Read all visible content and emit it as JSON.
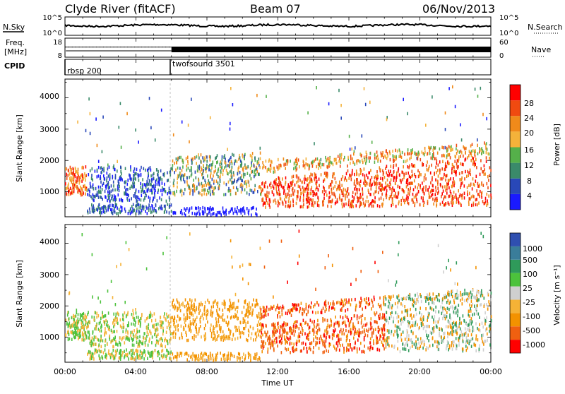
{
  "header": {
    "station": "Clyde River (fitACF)",
    "beam": "Beam 07",
    "date": "06/Nov/2013"
  },
  "side_labels": {
    "nsky": "N.Sky",
    "nsearch": "N.Search",
    "freq_line1": "Freq.",
    "freq_line2": "[MHz]",
    "nave": "Nave",
    "cpid": "CPID"
  },
  "cpid_segments": [
    {
      "label": "rbsp 200",
      "start_hour": 0
    },
    {
      "label": "twofsound 3501",
      "start_hour": 6
    }
  ],
  "colors": {
    "power_scale": [
      "#1a1aff",
      "#2948b8",
      "#3a8a6a",
      "#55b04a",
      "#f4b23a",
      "#f08a1a",
      "#f04a10",
      "#ff0000"
    ],
    "velocity_scale": [
      "#ff0000",
      "#f06010",
      "#f39200",
      "#f5b236",
      "#cfcfcf",
      "#4cc23c",
      "#2f9a5a",
      "#3a7d9a",
      "#2f4fb0"
    ]
  },
  "chart_data": [
    {
      "type": "line",
      "name": "noise",
      "left_ticks": [
        "10^5",
        "10^0"
      ],
      "right_ticks": [
        "10^5",
        "10^0"
      ],
      "xlim": [
        0,
        24
      ]
    },
    {
      "type": "line",
      "name": "frequency-nave",
      "left_ticks": [
        "18",
        "8"
      ],
      "right_ticks": [
        "60",
        "0"
      ],
      "xlim": [
        0,
        24
      ]
    },
    {
      "type": "heatmap",
      "name": "power",
      "ylabel": "Slant Range [km]",
      "yticks": [
        "4000",
        "3000",
        "2000",
        "1000"
      ],
      "ylim": [
        200,
        4600
      ],
      "xlim": [
        0,
        24
      ],
      "colorbar_label": "Power [dB]",
      "colorbar_ticks": [
        "28",
        "24",
        "20",
        "16",
        "12",
        "8",
        "4"
      ]
    },
    {
      "type": "heatmap",
      "name": "velocity",
      "ylabel": "Slant Range [km]",
      "yticks": [
        "4000",
        "3000",
        "2000",
        "1000"
      ],
      "ylim": [
        200,
        4600
      ],
      "xlim": [
        0,
        24
      ],
      "colorbar_label": "Velocity [m s⁻¹]",
      "colorbar_ticks": [
        "1000",
        "500",
        "100",
        "25",
        "-25",
        "-100",
        "-500",
        "-1000"
      ]
    }
  ],
  "xaxis": {
    "ticks": [
      "00:00",
      "04:00",
      "08:00",
      "12:00",
      "16:00",
      "20:00",
      "00:00"
    ],
    "label": "Time UT"
  }
}
